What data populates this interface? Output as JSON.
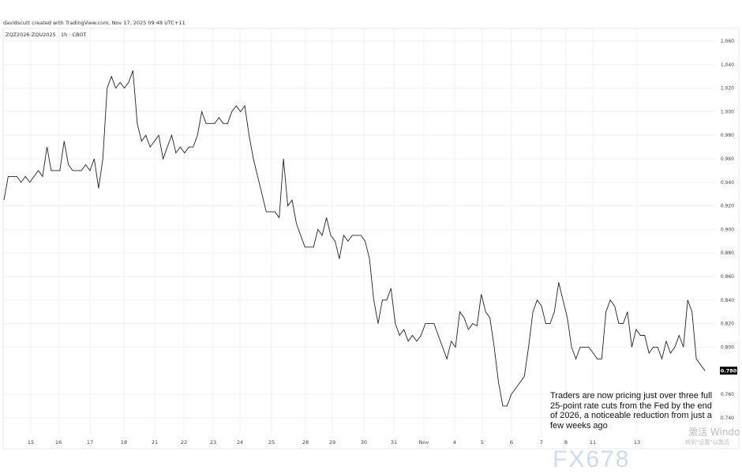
{
  "header": {
    "credit": "davidscutt created with TradingView.com, Nov 17, 2025 09:48 UTC+11",
    "symbol": "ZQZ2026-ZQU2025 · 1h · CBOT"
  },
  "annotation": "Traders are now pricing just over three full 25-point rate cuts from the Fed by the end of 2026, a noticeable reduction from just a few weeks ago",
  "watermark": {
    "text": "FX678",
    "windows_line1": "激活 Windo",
    "windows_line2": "转到\"设置\"以激活"
  },
  "colors": {
    "line": "#222222",
    "grid": "#f0f0f0",
    "last_price_bg": "#000000",
    "watermark": "#c9d8ee"
  },
  "chart_data": {
    "type": "line",
    "title": "",
    "ylim": [
      0.735,
      1.065
    ],
    "y_ticks": [
      "1.060",
      "1.040",
      "1.020",
      "1.000",
      "0.980",
      "0.960",
      "0.940",
      "0.920",
      "0.900",
      "0.880",
      "0.860",
      "0.840",
      "0.820",
      "0.800",
      "0.760",
      "0.740"
    ],
    "x_ticks": [
      "15",
      "16",
      "17",
      "18",
      "21",
      "22",
      "23",
      "24",
      "25",
      "28",
      "29",
      "30",
      "31",
      "Nov",
      "4",
      "5",
      "6",
      "7",
      "8",
      "11",
      "13"
    ],
    "last_price": "0.780",
    "grid": true,
    "values": [
      0.925,
      0.945,
      0.945,
      0.945,
      0.94,
      0.945,
      0.94,
      0.945,
      0.95,
      0.945,
      0.97,
      0.95,
      0.95,
      0.95,
      0.975,
      0.955,
      0.95,
      0.95,
      0.95,
      0.955,
      0.95,
      0.96,
      0.935,
      0.96,
      1.02,
      1.03,
      1.02,
      1.025,
      1.02,
      1.025,
      1.035,
      0.99,
      0.975,
      0.98,
      0.97,
      0.975,
      0.98,
      0.96,
      0.97,
      0.98,
      0.965,
      0.97,
      0.965,
      0.97,
      0.97,
      0.98,
      1.0,
      0.99,
      0.99,
      0.99,
      0.995,
      0.99,
      0.99,
      1.0,
      1.005,
      1.0,
      1.005,
      0.98,
      0.96,
      0.945,
      0.93,
      0.915,
      0.915,
      0.915,
      0.91,
      0.96,
      0.92,
      0.925,
      0.905,
      0.895,
      0.885,
      0.885,
      0.885,
      0.9,
      0.895,
      0.91,
      0.895,
      0.89,
      0.875,
      0.895,
      0.89,
      0.895,
      0.895,
      0.895,
      0.89,
      0.875,
      0.84,
      0.82,
      0.84,
      0.84,
      0.85,
      0.82,
      0.81,
      0.815,
      0.805,
      0.81,
      0.805,
      0.81,
      0.82,
      0.82,
      0.82,
      0.81,
      0.8,
      0.79,
      0.805,
      0.8,
      0.83,
      0.825,
      0.815,
      0.82,
      0.818,
      0.845,
      0.83,
      0.825,
      0.8,
      0.77,
      0.75,
      0.75,
      0.76,
      0.765,
      0.77,
      0.775,
      0.8,
      0.83,
      0.84,
      0.835,
      0.82,
      0.82,
      0.83,
      0.855,
      0.84,
      0.825,
      0.8,
      0.79,
      0.8,
      0.8,
      0.8,
      0.795,
      0.79,
      0.79,
      0.83,
      0.84,
      0.835,
      0.82,
      0.82,
      0.83,
      0.8,
      0.815,
      0.81,
      0.81,
      0.795,
      0.8,
      0.8,
      0.79,
      0.805,
      0.795,
      0.8,
      0.81,
      0.8,
      0.84,
      0.83,
      0.79,
      0.785,
      0.78
    ]
  }
}
